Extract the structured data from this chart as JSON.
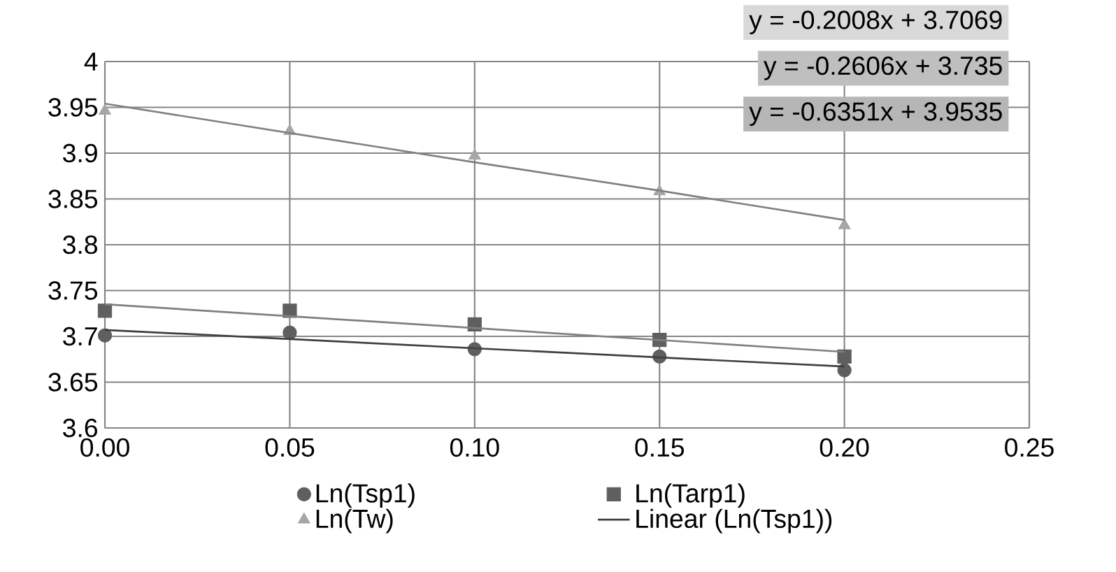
{
  "chart_data": {
    "type": "scatter",
    "x": [
      0,
      0.05,
      0.1,
      0.15,
      0.2
    ],
    "series": [
      {
        "name": "Ln(Tsp1)",
        "color": "#5f5f5f",
        "marker": "circle",
        "values": [
          3.701,
          3.704,
          3.686,
          3.678,
          3.663
        ]
      },
      {
        "name": "Ln(Tarp1)",
        "color": "#5f5f5f",
        "marker": "square",
        "values": [
          3.728,
          3.728,
          3.713,
          3.696,
          3.678
        ]
      },
      {
        "name": "Ln(Tw)",
        "color": "#a6a6a6",
        "marker": "triangle",
        "values": [
          3.946,
          3.924,
          3.897,
          3.858,
          3.821
        ]
      },
      {
        "name": "Linear (Ln(Tsp1))",
        "type": "line",
        "color": "#404040",
        "marker": "none",
        "values": [
          3.707,
          3.697,
          3.687,
          3.677,
          3.667
        ]
      },
      {
        "type": "line",
        "color": "#808080",
        "marker": "none",
        "values": [
          3.735,
          3.722,
          3.709,
          3.696,
          3.683
        ]
      },
      {
        "type": "line",
        "color": "#808080",
        "marker": "none",
        "values": [
          3.954,
          3.922,
          3.89,
          3.859,
          3.827
        ]
      }
    ],
    "xlim": [
      0,
      0.25
    ],
    "xticks": [
      {
        "value": 0,
        "label": "0.00"
      },
      {
        "value": 0.05,
        "label": "0.05"
      },
      {
        "value": 0.1,
        "label": "0.10"
      },
      {
        "value": 0.15,
        "label": "0.15"
      },
      {
        "value": 0.2,
        "label": "0.20"
      },
      {
        "value": 0.25,
        "label": "0.25"
      }
    ],
    "ylim": [
      3.6,
      4
    ],
    "yticks": [
      3.6,
      3.65,
      3.7,
      3.75,
      3.8,
      3.85,
      3.9,
      3.95,
      4
    ],
    "grid": true,
    "legend": "bottom",
    "annotations": [
      "y = -0.2008x + 3.7069",
      "y = -0.2606x + 3.735",
      "y = -0.6351x + 3.9535"
    ]
  }
}
